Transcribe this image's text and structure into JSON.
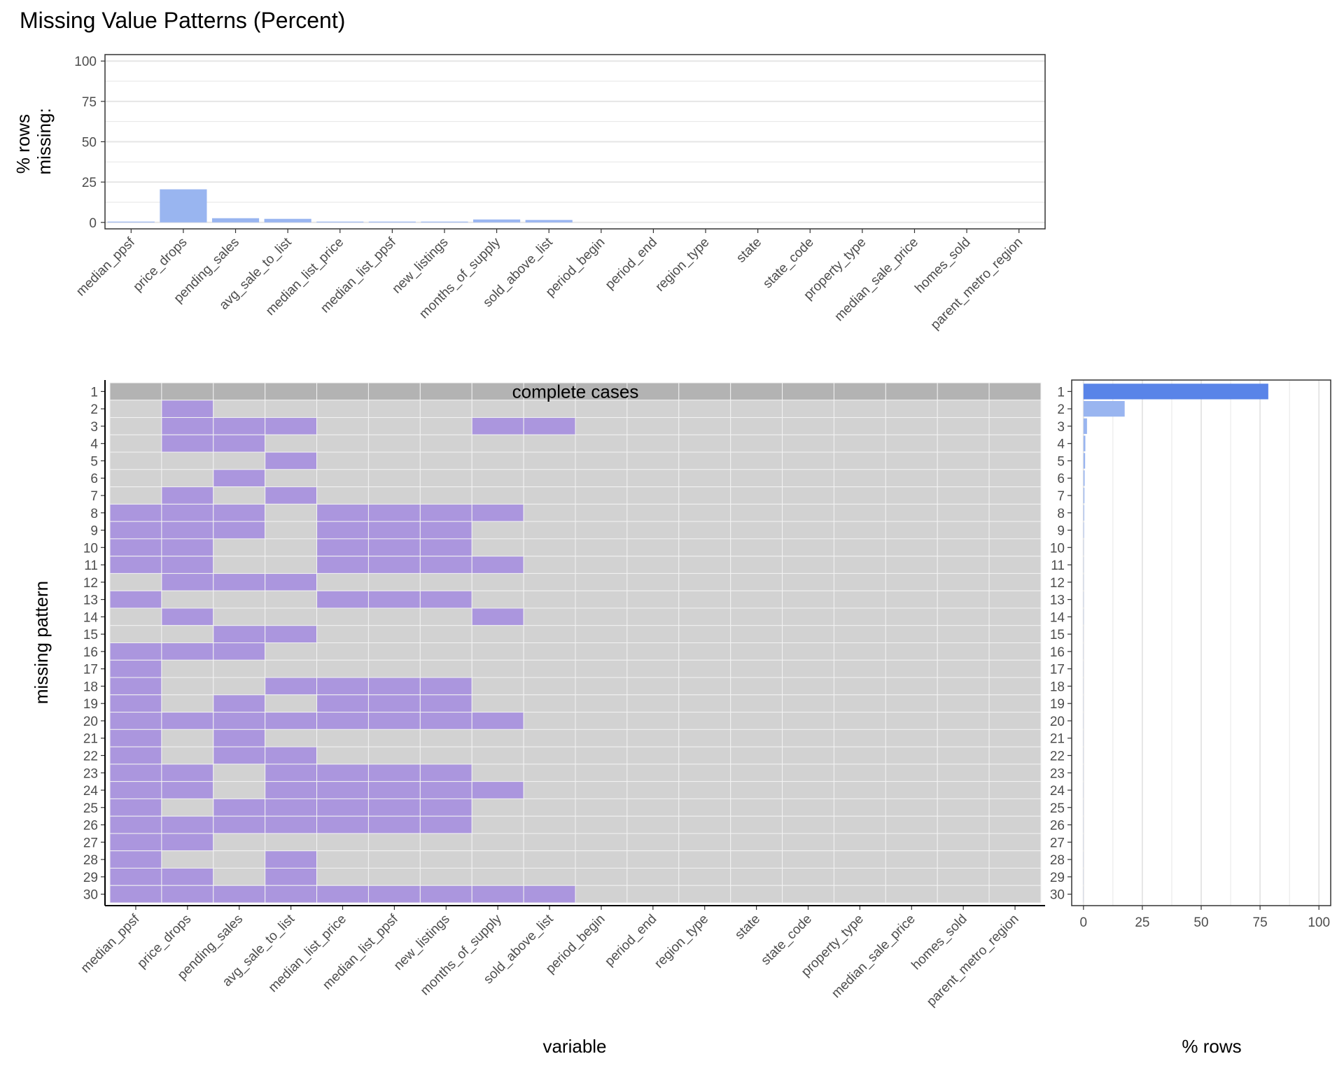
{
  "chart_data": [
    {
      "type": "bar",
      "title": "Missing Value Patterns (Percent)",
      "ylabel": "% rows\nmissing:",
      "xlabel": "",
      "ylim": [
        0,
        100
      ],
      "yticks": [
        0,
        25,
        50,
        75,
        100
      ],
      "grid": true,
      "categories": [
        "median_ppsf",
        "price_drops",
        "pending_sales",
        "avg_sale_to_list",
        "median_list_price",
        "median_list_ppsf",
        "new_listings",
        "months_of_supply",
        "sold_above_list",
        "period_begin",
        "period_end",
        "region_type",
        "state",
        "state_code",
        "property_type",
        "median_sale_price",
        "homes_sold",
        "parent_metro_region"
      ],
      "values": [
        0.5,
        20.5,
        2.6,
        2.2,
        0.5,
        0.5,
        0.5,
        1.8,
        1.5,
        0,
        0,
        0,
        0,
        0,
        0,
        0,
        0,
        0
      ],
      "colors": {
        "bar": "#99b5f0",
        "grid": "#e6e6e6"
      }
    },
    {
      "type": "heatmap",
      "xlabel": "variable",
      "ylabel": "missing pattern",
      "annotation": "complete cases",
      "x": [
        "median_ppsf",
        "price_drops",
        "pending_sales",
        "avg_sale_to_list",
        "median_list_price",
        "median_list_ppsf",
        "new_listings",
        "months_of_supply",
        "sold_above_list",
        "period_begin",
        "period_end",
        "region_type",
        "state",
        "state_code",
        "property_type",
        "median_sale_price",
        "homes_sold",
        "parent_metro_region"
      ],
      "y": [
        "1",
        "2",
        "3",
        "4",
        "5",
        "6",
        "7",
        "8",
        "9",
        "10",
        "11",
        "12",
        "13",
        "14",
        "15",
        "16",
        "17",
        "18",
        "19",
        "20",
        "21",
        "22",
        "23",
        "24",
        "25",
        "26",
        "27",
        "28",
        "29",
        "30"
      ],
      "missing": [
        [],
        [
          1
        ],
        [
          1,
          2,
          3,
          7,
          8
        ],
        [
          1,
          2
        ],
        [
          3
        ],
        [
          2
        ],
        [
          1,
          3
        ],
        [
          0,
          1,
          2,
          4,
          5,
          6,
          7
        ],
        [
          0,
          1,
          2,
          4,
          5,
          6
        ],
        [
          0,
          1,
          4,
          5,
          6
        ],
        [
          0,
          1,
          4,
          5,
          6,
          7
        ],
        [
          1,
          2,
          3
        ],
        [
          0,
          4,
          5,
          6
        ],
        [
          1,
          7
        ],
        [
          2,
          3
        ],
        [
          0,
          1,
          2
        ],
        [
          0
        ],
        [
          0,
          3,
          4,
          5,
          6
        ],
        [
          0,
          2,
          4,
          5,
          6
        ],
        [
          0,
          1,
          2,
          3,
          4,
          5,
          6,
          7
        ],
        [
          0,
          2
        ],
        [
          0,
          2,
          3
        ],
        [
          0,
          1,
          3,
          4,
          5,
          6
        ],
        [
          0,
          1,
          3,
          4,
          5,
          6,
          7
        ],
        [
          0,
          2,
          3,
          4,
          5,
          6
        ],
        [
          0,
          1,
          2,
          3,
          4,
          5,
          6
        ],
        [
          0,
          1
        ],
        [
          0,
          3
        ],
        [
          0,
          1,
          3
        ],
        [
          0,
          1,
          2,
          3,
          4,
          5,
          6,
          7,
          8
        ]
      ],
      "colors": {
        "missing": "#ab96de",
        "present": "#d2d2d2",
        "complete": "#b3b3b3"
      }
    },
    {
      "type": "bar",
      "orientation": "horizontal",
      "xlabel": "% rows",
      "xlim": [
        0,
        100
      ],
      "xticks": [
        0,
        25,
        50,
        75,
        100
      ],
      "grid": true,
      "categories": [
        "1",
        "2",
        "3",
        "4",
        "5",
        "6",
        "7",
        "8",
        "9",
        "10",
        "11",
        "12",
        "13",
        "14",
        "15",
        "16",
        "17",
        "18",
        "19",
        "20",
        "21",
        "22",
        "23",
        "24",
        "25",
        "26",
        "27",
        "28",
        "29",
        "30"
      ],
      "values": [
        78.5,
        17.5,
        1.5,
        0.8,
        0.7,
        0.5,
        0.4,
        0.3,
        0.2,
        0.1,
        0.1,
        0.1,
        0.1,
        0.1,
        0.05,
        0.05,
        0.05,
        0.05,
        0.05,
        0.05,
        0.05,
        0.05,
        0.05,
        0.05,
        0.05,
        0.05,
        0.05,
        0.05,
        0.05,
        0.05
      ],
      "colors": {
        "highlight": "#5984e8",
        "bar": "#99b5f0",
        "grid": "#e6e6e6"
      }
    }
  ]
}
